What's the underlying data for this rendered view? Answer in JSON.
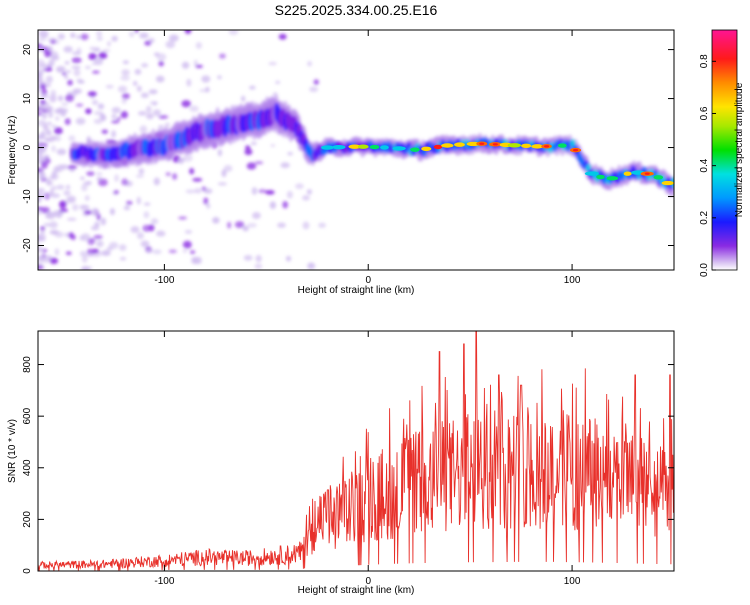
{
  "title": "S225.2025.334.00.25.E16",
  "colors": {
    "snr_line": "#e8302a",
    "axis": "#000000"
  },
  "chart_data": [
    {
      "type": "heatmap",
      "xlabel": "Height of straight line (km)",
      "ylabel": "Frequency (Hz)",
      "xlim": [
        -162,
        150
      ],
      "ylim": [
        -25,
        24
      ],
      "xticks": [
        -100,
        0,
        100
      ],
      "yticks": [
        -20,
        -10,
        0,
        10,
        20
      ],
      "colorbar": {
        "label": "Normalized spectral amplitude",
        "range": [
          0.0,
          0.92
        ],
        "ticks": [
          0.0,
          0.2,
          0.4,
          0.6,
          0.8
        ],
        "colormap": "rainbow"
      },
      "ridge": [
        {
          "x": -145,
          "y": -1.0,
          "w": 2.2
        },
        {
          "x": -130,
          "y": -1.5,
          "w": 2.5
        },
        {
          "x": -115,
          "y": -0.5,
          "w": 3.0
        },
        {
          "x": -100,
          "y": 0.5,
          "w": 3.2
        },
        {
          "x": -85,
          "y": 3.0,
          "w": 3.5
        },
        {
          "x": -70,
          "y": 4.5,
          "w": 3.5
        },
        {
          "x": -55,
          "y": 5.5,
          "w": 3.5
        },
        {
          "x": -45,
          "y": 7.0,
          "w": 3.5
        },
        {
          "x": -35,
          "y": 4.0,
          "w": 3.0
        },
        {
          "x": -28,
          "y": -1.5,
          "w": 2.2
        },
        {
          "x": -20,
          "y": 0.0,
          "w": 1.6
        },
        {
          "x": -5,
          "y": 0.2,
          "w": 1.6
        },
        {
          "x": 10,
          "y": 0.0,
          "w": 1.6
        },
        {
          "x": 25,
          "y": -0.5,
          "w": 1.8
        },
        {
          "x": 40,
          "y": 0.5,
          "w": 1.8
        },
        {
          "x": 55,
          "y": 0.8,
          "w": 1.6
        },
        {
          "x": 70,
          "y": 0.5,
          "w": 1.6
        },
        {
          "x": 85,
          "y": 0.2,
          "w": 1.6
        },
        {
          "x": 100,
          "y": 0.5,
          "w": 1.6
        },
        {
          "x": 110,
          "y": -5.5,
          "w": 1.8
        },
        {
          "x": 118,
          "y": -6.5,
          "w": 1.8
        },
        {
          "x": 130,
          "y": -5.0,
          "w": 1.8
        },
        {
          "x": 140,
          "y": -5.5,
          "w": 1.8
        },
        {
          "x": 148,
          "y": -7.5,
          "w": 2.0
        }
      ]
    },
    {
      "type": "line",
      "xlabel": "Height of straight line (km)",
      "ylabel": "SNR (10 * v/v)",
      "xlim": [
        -162,
        150
      ],
      "ylim": [
        0,
        930
      ],
      "xticks": [
        -100,
        0,
        100
      ],
      "yticks": [
        0,
        200,
        400,
        600,
        800
      ],
      "envelope": [
        {
          "x": -162,
          "y": 25
        },
        {
          "x": -130,
          "y": 30
        },
        {
          "x": -100,
          "y": 45
        },
        {
          "x": -80,
          "y": 60
        },
        {
          "x": -60,
          "y": 55
        },
        {
          "x": -40,
          "y": 70
        },
        {
          "x": -33,
          "y": 80
        },
        {
          "x": -30,
          "y": 160
        },
        {
          "x": -20,
          "y": 230
        },
        {
          "x": -10,
          "y": 260
        },
        {
          "x": 0,
          "y": 300
        },
        {
          "x": 10,
          "y": 340
        },
        {
          "x": 20,
          "y": 370
        },
        {
          "x": 30,
          "y": 390
        },
        {
          "x": 40,
          "y": 410
        },
        {
          "x": 50,
          "y": 420
        },
        {
          "x": 60,
          "y": 430
        },
        {
          "x": 70,
          "y": 440
        },
        {
          "x": 80,
          "y": 440
        },
        {
          "x": 90,
          "y": 440
        },
        {
          "x": 100,
          "y": 430
        },
        {
          "x": 110,
          "y": 410
        },
        {
          "x": 120,
          "y": 390
        },
        {
          "x": 130,
          "y": 370
        },
        {
          "x": 140,
          "y": 340
        },
        {
          "x": 150,
          "y": 320
        }
      ],
      "peaks": [
        {
          "x": 35,
          "y": 850
        },
        {
          "x": 47,
          "y": 880
        },
        {
          "x": 53,
          "y": 930
        },
        {
          "x": 64,
          "y": 760
        },
        {
          "x": 75,
          "y": 720
        },
        {
          "x": 131,
          "y": 760
        },
        {
          "x": 148,
          "y": 760
        }
      ]
    }
  ]
}
